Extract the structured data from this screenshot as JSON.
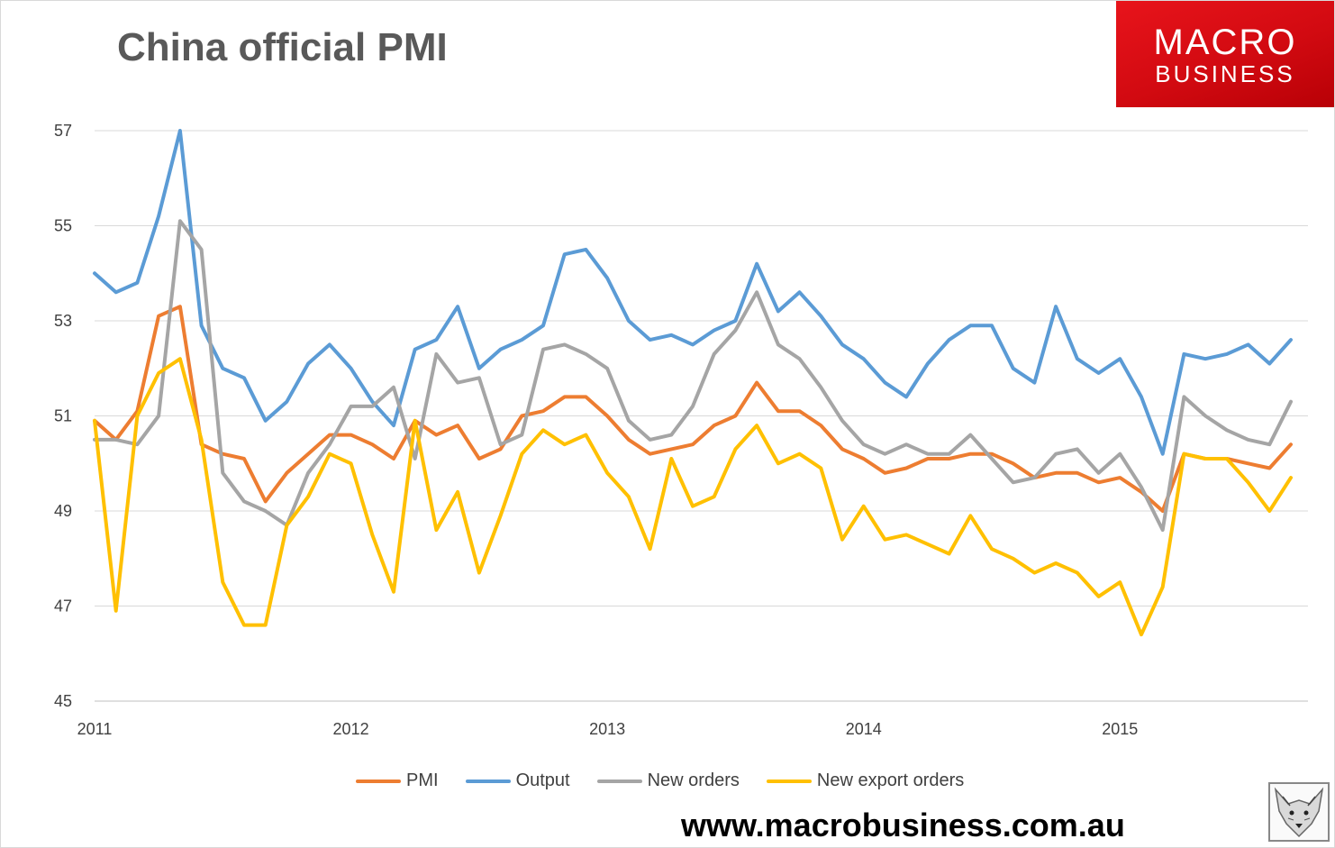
{
  "title": "China official PMI",
  "logo": {
    "line1": "MACRO",
    "line2": "BUSINESS"
  },
  "url": "www.macrobusiness.com.au",
  "chart_data": {
    "type": "line",
    "title": "China official PMI",
    "xlabel": "",
    "ylabel": "",
    "ylim": [
      45,
      57
    ],
    "yticks": [
      45,
      47,
      49,
      51,
      53,
      55,
      57
    ],
    "xticks": [
      "2011",
      "2012",
      "2013",
      "2014",
      "2015"
    ],
    "x_start": "2011-01",
    "x_end": "2015-09",
    "grid": "horizontal",
    "legend_position": "bottom",
    "series": [
      {
        "name": "PMI",
        "color": "#ED7D31",
        "values": [
          50.9,
          50.5,
          51.1,
          53.1,
          53.3,
          50.4,
          50.2,
          50.1,
          49.2,
          49.8,
          50.2,
          50.6,
          50.6,
          50.4,
          50.1,
          50.9,
          50.6,
          50.8,
          50.1,
          50.3,
          51.0,
          51.1,
          51.4,
          51.4,
          51.0,
          50.5,
          50.2,
          50.3,
          50.4,
          50.8,
          51.0,
          51.7,
          51.1,
          51.1,
          50.8,
          50.3,
          50.1,
          49.8,
          49.9,
          50.1,
          50.1,
          50.2,
          50.2,
          50.0,
          49.7,
          49.8,
          49.8,
          49.6,
          49.7,
          49.4,
          49.0,
          50.2,
          50.1,
          50.1,
          50.0,
          49.9,
          50.4
        ]
      },
      {
        "name": "Output",
        "color": "#5B9BD5",
        "values": [
          54.0,
          53.6,
          53.8,
          55.2,
          57.0,
          52.9,
          52.0,
          51.8,
          50.9,
          51.3,
          52.1,
          52.5,
          52.0,
          51.3,
          50.8,
          52.4,
          52.6,
          53.3,
          52.0,
          52.4,
          52.6,
          52.9,
          54.4,
          54.5,
          53.9,
          53.0,
          52.6,
          52.7,
          52.5,
          52.8,
          53.0,
          54.2,
          53.2,
          53.6,
          53.1,
          52.5,
          52.2,
          51.7,
          51.4,
          52.1,
          52.6,
          52.9,
          52.9,
          52.0,
          51.7,
          53.3,
          52.2,
          51.9,
          52.2,
          51.4,
          50.2,
          52.3,
          52.2,
          52.3,
          52.5,
          52.1,
          52.6
        ]
      },
      {
        "name": "New orders",
        "color": "#A5A5A5",
        "values": [
          50.5,
          50.5,
          50.4,
          51.0,
          55.1,
          54.5,
          49.8,
          49.2,
          49.0,
          48.7,
          49.8,
          50.4,
          51.2,
          51.2,
          51.6,
          50.1,
          52.3,
          51.7,
          51.8,
          50.4,
          50.6,
          52.4,
          52.5,
          52.3,
          52.0,
          50.9,
          50.5,
          50.6,
          51.2,
          52.3,
          52.8,
          53.6,
          52.5,
          52.2,
          51.6,
          50.9,
          50.4,
          50.2,
          50.4,
          50.2,
          50.2,
          50.6,
          50.1,
          49.6,
          49.7,
          50.2,
          50.3,
          49.8,
          50.2,
          49.5,
          48.6,
          51.4,
          51.0,
          50.7,
          50.5,
          50.4,
          51.3
        ]
      },
      {
        "name": "New export orders",
        "color": "#FFC000",
        "values": [
          50.9,
          46.9,
          51.0,
          51.9,
          52.2,
          50.5,
          47.5,
          46.6,
          46.6,
          48.7,
          49.3,
          50.2,
          50.0,
          48.5,
          47.3,
          50.9,
          48.6,
          49.4,
          47.7,
          48.9,
          50.2,
          50.7,
          50.4,
          50.6,
          49.8,
          49.3,
          48.2,
          50.1,
          49.1,
          49.3,
          50.3,
          50.8,
          50.0,
          50.2,
          49.9,
          48.4,
          49.1,
          48.4,
          48.5,
          48.3,
          48.1,
          48.9,
          48.2,
          48.0,
          47.7,
          47.9,
          47.7,
          47.2,
          47.5,
          46.4,
          47.4,
          50.2,
          50.1,
          50.1,
          49.6,
          49.0,
          49.7
        ]
      }
    ]
  }
}
